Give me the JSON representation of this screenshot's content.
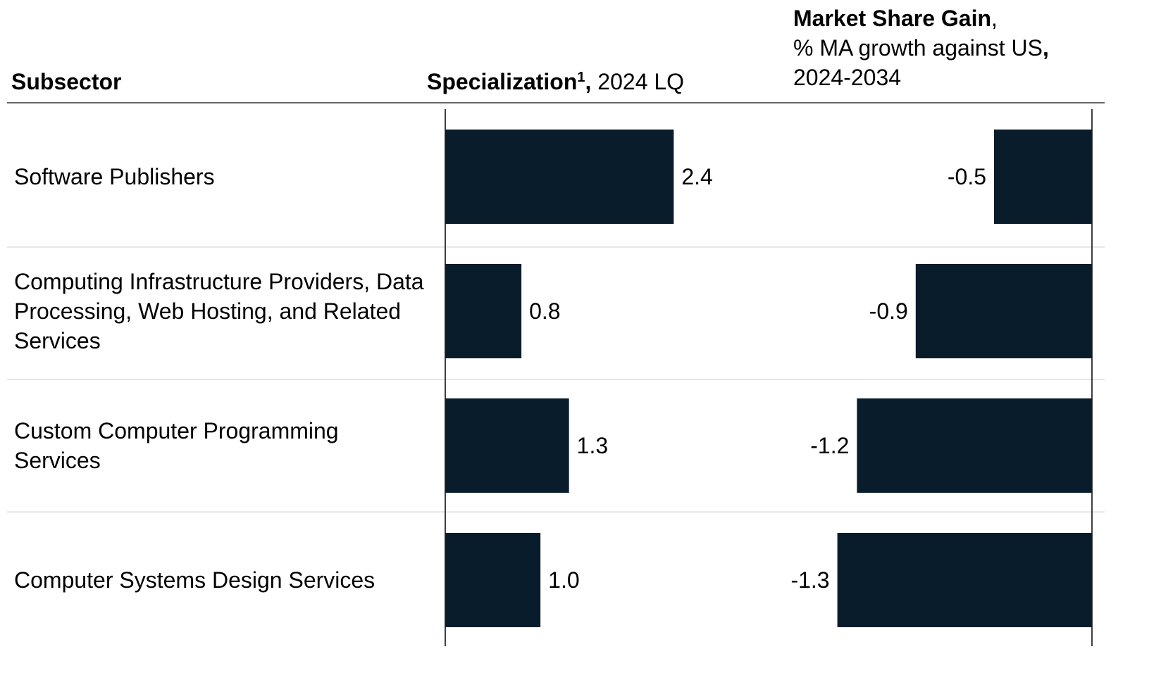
{
  "chart_data": {
    "type": "bar",
    "orientation": "horizontal",
    "category_header": "Subsector",
    "categories": [
      "Software Publishers",
      "Computing Infrastructure Providers, Data Processing, Web Hosting, and Related Services",
      "Custom Computer Programming Services",
      "Computer Systems Design Services"
    ],
    "series": [
      {
        "header": [
          [
            {
              "text": "Specialization",
              "bold": true
            },
            {
              "text": "1",
              "bold": true,
              "sup": true
            },
            {
              "text": ",",
              "bold": true
            },
            {
              "text": " 2024 LQ"
            }
          ]
        ],
        "color": "#081c2c",
        "values": [
          2.4,
          0.8,
          1.3,
          1.0
        ],
        "value_labels": [
          "2.4",
          "0.8",
          "1.3",
          "1.0"
        ],
        "xlim": [
          0,
          3.5
        ]
      },
      {
        "header": [
          [
            {
              "text": "Market Share Gain",
              "bold": true
            },
            {
              "text": ","
            }
          ],
          [
            {
              "text": "% MA growth against US"
            },
            {
              "text": ",",
              "bold": true
            }
          ],
          [
            {
              "text": "2024-2034"
            }
          ]
        ],
        "color": "#081c2c",
        "values": [
          -0.5,
          -0.9,
          -1.2,
          -1.3
        ],
        "value_labels": [
          "-0.5",
          "-0.9",
          "-1.2",
          "-1.3"
        ],
        "xlim": [
          -1.7,
          0
        ]
      }
    ]
  }
}
